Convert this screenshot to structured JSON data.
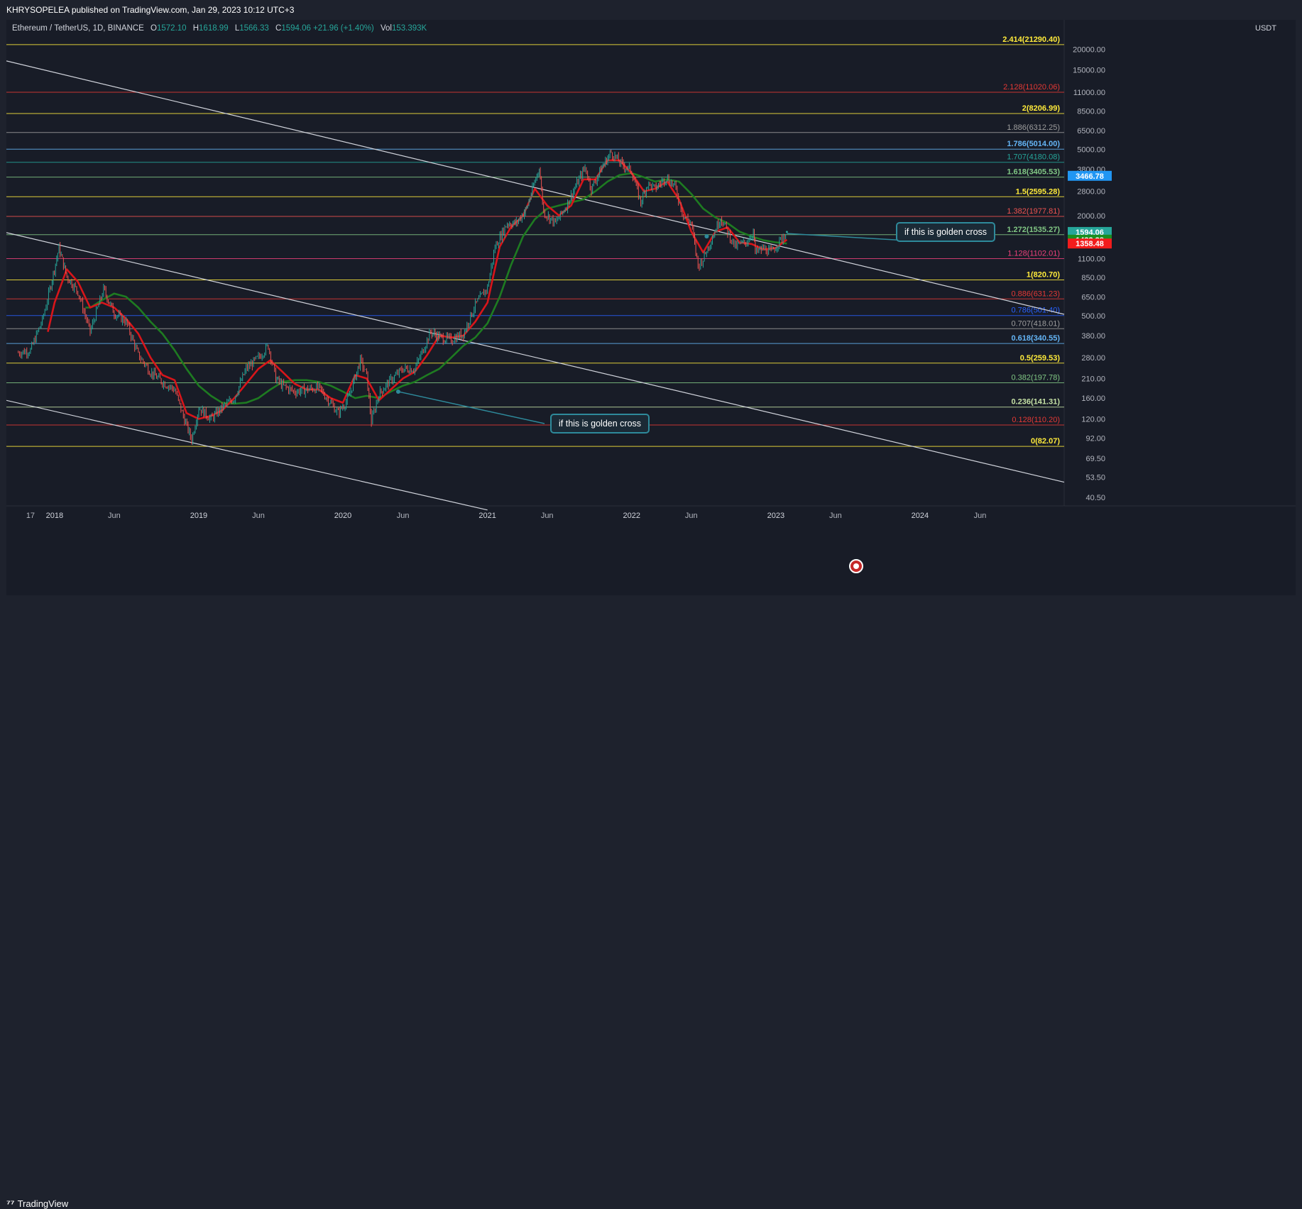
{
  "header": {
    "publisher": "KHRYSOPELEA published on TradingView.com, Jan 29, 2023 10:12 UTC+3"
  },
  "legend": {
    "symbol": "Ethereum / TetherUS, 1D, BINANCE",
    "o_label": "O",
    "o": "1572.10",
    "h_label": "H",
    "h": "1618.99",
    "l_label": "L",
    "l": "1566.33",
    "c_label": "C",
    "c": "1594.06",
    "change": "+21.96 (+1.40%)",
    "vol_label": "Vol",
    "vol": "153.393K"
  },
  "axis_unit": "USDT",
  "footer": {
    "brand": "TradingView"
  },
  "annotations": {
    "callout_1": "if this is golden cross",
    "callout_2": "if this is golden cross"
  },
  "price_tags": [
    {
      "text": "3466.78",
      "value": 3466.78,
      "color": "#2196f3",
      "fg": "#ffffff"
    },
    {
      "text": "1594.06",
      "value": 1594.06,
      "color": "#26a69a",
      "fg": "#ffffff"
    },
    {
      "text": "16:47:12",
      "value": 1594.06,
      "color": "#26a69a",
      "fg": "#ffffff",
      "offset_rows": 1
    },
    {
      "text": "1432.28",
      "value": 1432.28,
      "color": "#1b8e1f",
      "fg": "#ffffff"
    },
    {
      "text": "1358.48",
      "value": 1358.48,
      "color": "#f21c1c",
      "fg": "#ffffff"
    }
  ],
  "colors": {
    "background": "#181c27",
    "up_candle": "#26a69a",
    "down_candle": "#ef5350",
    "ma_fast": "#d8151a",
    "ma_slow": "#1e7b21",
    "trendline": "#d1d4dc"
  },
  "chart_data": {
    "type": "line",
    "title": "Ethereum / TetherUS, 1D, BINANCE",
    "yscale": "log",
    "ylim": [
      36,
      30000
    ],
    "xlim": [
      "2017-09-01",
      "2024-12-31"
    ],
    "grid": false,
    "y_ticks": [
      "20000.00",
      "15000.00",
      "11000.00",
      "8500.00",
      "6500.00",
      "5000.00",
      "3800.00",
      "2800.00",
      "2000.00",
      "1500.00",
      "1100.00",
      "850.00",
      "650.00",
      "500.00",
      "380.00",
      "280.00",
      "210.00",
      "160.00",
      "120.00",
      "92.00",
      "69.50",
      "53.50",
      "40.50"
    ],
    "x_ticks": [
      {
        "label": "17",
        "date": "2017-11-01"
      },
      {
        "label": "2018",
        "date": "2018-01-01"
      },
      {
        "label": "Jun",
        "date": "2018-06-01"
      },
      {
        "label": "2019",
        "date": "2019-01-01"
      },
      {
        "label": "Jun",
        "date": "2019-06-01"
      },
      {
        "label": "2020",
        "date": "2020-01-01"
      },
      {
        "label": "Jun",
        "date": "2020-06-01"
      },
      {
        "label": "2021",
        "date": "2021-01-01"
      },
      {
        "label": "Jun",
        "date": "2021-06-01"
      },
      {
        "label": "2022",
        "date": "2022-01-01"
      },
      {
        "label": "Jun",
        "date": "2022-06-01"
      },
      {
        "label": "2023",
        "date": "2023-01-01"
      },
      {
        "label": "Jun",
        "date": "2023-06-01"
      },
      {
        "label": "2024",
        "date": "2024-01-01"
      },
      {
        "label": "Jun",
        "date": "2024-06-01"
      }
    ],
    "fib_levels": [
      {
        "label": "2.414(21290.40)",
        "value": 21290.4,
        "color": "#ffeb3b",
        "bold": true
      },
      {
        "label": "2.128(11020.06)",
        "value": 11020.06,
        "color": "#e53935",
        "bold": false
      },
      {
        "label": "2(8206.99)",
        "value": 8206.99,
        "color": "#ffeb3b",
        "bold": true
      },
      {
        "label": "1.886(6312.25)",
        "value": 6312.25,
        "color": "#9e9e9e",
        "bold": false
      },
      {
        "label": "1.786(5014.00)",
        "value": 5014.0,
        "color": "#64b5f6",
        "bold": true
      },
      {
        "label": "1.707(4180.08)",
        "value": 4180.08,
        "color": "#26a69a",
        "bold": false
      },
      {
        "label": "1.618(3405.53)",
        "value": 3405.53,
        "color": "#81c784",
        "bold": true
      },
      {
        "label": "1.5(2595.28)",
        "value": 2595.28,
        "color": "#ffeb3b",
        "bold": true
      },
      {
        "label": "1.382(1977.81)",
        "value": 1977.81,
        "color": "#ef5350",
        "bold": false
      },
      {
        "label": "1.272(1535.27)",
        "value": 1535.27,
        "color": "#81c784",
        "bold": true
      },
      {
        "label": "1.128(1102.01)",
        "value": 1102.01,
        "color": "#ec407a",
        "bold": false
      },
      {
        "label": "1(820.70)",
        "value": 820.7,
        "color": "#ffeb3b",
        "bold": true
      },
      {
        "label": "0.886(631.23)",
        "value": 631.23,
        "color": "#e53935",
        "bold": false
      },
      {
        "label": "0.786(501.40)",
        "value": 501.4,
        "color": "#2962ff",
        "bold": false
      },
      {
        "label": "0.707(418.01)",
        "value": 418.01,
        "color": "#9e9e9e",
        "bold": false
      },
      {
        "label": "0.618(340.55)",
        "value": 340.55,
        "color": "#64b5f6",
        "bold": true
      },
      {
        "label": "0.5(259.53)",
        "value": 259.53,
        "color": "#ffeb3b",
        "bold": true
      },
      {
        "label": "0.382(197.78)",
        "value": 197.78,
        "color": "#81c784",
        "bold": false
      },
      {
        "label": "0.236(141.31)",
        "value": 141.31,
        "color": "#c5e1a5",
        "bold": true
      },
      {
        "label": "0.128(110.20)",
        "value": 110.2,
        "color": "#e53935",
        "bold": false
      },
      {
        "label": "0(82.07)",
        "value": 82.07,
        "color": "#ffeb3b",
        "bold": true
      }
    ],
    "trendlines": [
      {
        "name": "upper",
        "x1": "2017-09-01",
        "y1": 17000,
        "x2": "2024-12-31",
        "y2": 510
      },
      {
        "name": "middle",
        "x1": "2017-09-01",
        "y1": 1580,
        "x2": "2024-12-31",
        "y2": 50
      },
      {
        "name": "lower",
        "x1": "2017-09-01",
        "y1": 155,
        "x2": "2021-01-01",
        "y2": 34
      }
    ],
    "series": [
      {
        "name": "price",
        "kind": "candles",
        "x": [
          "2017-10-01",
          "2017-11-01",
          "2017-12-01",
          "2017-12-20",
          "2018-01-12",
          "2018-02-01",
          "2018-03-01",
          "2018-04-01",
          "2018-05-05",
          "2018-06-01",
          "2018-07-01",
          "2018-08-01",
          "2018-09-01",
          "2018-10-01",
          "2018-11-01",
          "2018-11-20",
          "2018-12-14",
          "2019-01-01",
          "2019-02-01",
          "2019-03-01",
          "2019-04-01",
          "2019-05-01",
          "2019-06-01",
          "2019-06-26",
          "2019-07-15",
          "2019-08-01",
          "2019-09-01",
          "2019-10-01",
          "2019-11-01",
          "2019-12-01",
          "2019-12-20",
          "2020-01-15",
          "2020-02-14",
          "2020-03-01",
          "2020-03-13",
          "2020-04-01",
          "2020-05-01",
          "2020-06-01",
          "2020-07-01",
          "2020-08-10",
          "2020-09-05",
          "2020-10-01",
          "2020-11-01",
          "2020-12-01",
          "2021-01-01",
          "2021-01-20",
          "2021-02-20",
          "2021-03-15",
          "2021-04-10",
          "2021-05-12",
          "2021-05-23",
          "2021-06-22",
          "2021-07-20",
          "2021-08-15",
          "2021-09-05",
          "2021-09-21",
          "2021-10-15",
          "2021-11-10",
          "2021-12-05",
          "2022-01-01",
          "2022-01-24",
          "2022-02-10",
          "2022-03-01",
          "2022-03-30",
          "2022-04-20",
          "2022-05-12",
          "2022-06-01",
          "2022-06-18",
          "2022-07-01",
          "2022-08-14",
          "2022-09-01",
          "2022-09-20",
          "2022-10-20",
          "2022-11-05",
          "2022-11-10",
          "2022-12-01",
          "2022-12-20",
          "2023-01-10",
          "2023-01-29"
        ],
        "values": [
          300,
          310,
          470,
          720,
          1280,
          860,
          700,
          400,
          720,
          520,
          460,
          290,
          230,
          200,
          180,
          130,
          90,
          140,
          120,
          140,
          160,
          240,
          280,
          330,
          210,
          190,
          175,
          180,
          185,
          150,
          130,
          160,
          270,
          220,
          115,
          170,
          205,
          240,
          240,
          400,
          370,
          360,
          390,
          580,
          740,
          1300,
          1800,
          1800,
          2200,
          3900,
          2100,
          1800,
          2300,
          3100,
          3900,
          2900,
          3800,
          4800,
          4100,
          3700,
          2400,
          3100,
          2900,
          3400,
          3000,
          2000,
          1800,
          1000,
          1100,
          1950,
          1600,
          1300,
          1400,
          1600,
          1200,
          1270,
          1200,
          1400,
          1594.06
        ]
      },
      {
        "name": "ma_fast",
        "x": [
          "2017-12-15",
          "2018-01-01",
          "2018-02-01",
          "2018-03-01",
          "2018-04-01",
          "2018-05-01",
          "2018-06-01",
          "2018-07-01",
          "2018-08-01",
          "2018-09-01",
          "2018-10-01",
          "2018-11-01",
          "2018-12-01",
          "2019-01-01",
          "2019-02-01",
          "2019-03-01",
          "2019-04-01",
          "2019-05-01",
          "2019-06-01",
          "2019-07-01",
          "2019-08-01",
          "2019-09-01",
          "2019-10-01",
          "2019-11-01",
          "2019-12-01",
          "2020-01-01",
          "2020-02-01",
          "2020-03-01",
          "2020-04-01",
          "2020-05-01",
          "2020-06-01",
          "2020-07-01",
          "2020-08-01",
          "2020-09-01",
          "2020-10-01",
          "2020-11-01",
          "2020-12-01",
          "2021-01-01",
          "2021-02-01",
          "2021-03-01",
          "2021-04-01",
          "2021-05-01",
          "2021-06-01",
          "2021-07-01",
          "2021-08-01",
          "2021-09-01",
          "2021-10-01",
          "2021-11-01",
          "2021-12-01",
          "2022-01-01",
          "2022-02-01",
          "2022-03-01",
          "2022-04-01",
          "2022-05-01",
          "2022-06-01",
          "2022-07-01",
          "2022-08-01",
          "2022-09-01",
          "2022-10-01",
          "2022-11-01",
          "2022-12-01",
          "2023-01-01",
          "2023-01-29"
        ],
        "values": [
          400,
          600,
          950,
          800,
          560,
          600,
          560,
          480,
          390,
          280,
          220,
          205,
          130,
          120,
          125,
          135,
          160,
          195,
          240,
          270,
          230,
          195,
          180,
          180,
          160,
          150,
          220,
          210,
          155,
          180,
          210,
          230,
          290,
          380,
          370,
          380,
          460,
          600,
          1300,
          1700,
          2000,
          2900,
          2300,
          2000,
          2300,
          3300,
          3300,
          4300,
          4300,
          3600,
          2800,
          2900,
          3200,
          2500,
          1600,
          1200,
          1600,
          1700,
          1380,
          1350,
          1250,
          1280,
          1432.28
        ]
      },
      {
        "name": "ma_slow",
        "x": [
          "2018-03-20",
          "2018-04-01",
          "2018-05-01",
          "2018-06-01",
          "2018-07-01",
          "2018-08-01",
          "2018-09-01",
          "2018-10-01",
          "2018-11-01",
          "2018-12-01",
          "2019-01-01",
          "2019-02-01",
          "2019-03-01",
          "2019-04-01",
          "2019-05-01",
          "2019-06-01",
          "2019-07-01",
          "2019-08-01",
          "2019-09-01",
          "2019-10-01",
          "2019-11-01",
          "2019-12-01",
          "2020-01-01",
          "2020-02-01",
          "2020-03-01",
          "2020-04-01",
          "2020-05-01",
          "2020-06-01",
          "2020-07-01",
          "2020-08-01",
          "2020-09-01",
          "2020-10-01",
          "2020-11-01",
          "2020-12-01",
          "2021-01-01",
          "2021-02-01",
          "2021-03-01",
          "2021-04-01",
          "2021-05-01",
          "2021-06-01",
          "2021-07-01",
          "2021-08-01",
          "2021-09-01",
          "2021-10-01",
          "2021-11-01",
          "2021-12-01",
          "2022-01-01",
          "2022-02-01",
          "2022-03-01",
          "2022-04-01",
          "2022-05-01",
          "2022-06-01",
          "2022-07-01",
          "2022-08-01",
          "2022-09-01",
          "2022-10-01",
          "2022-11-01",
          "2022-12-01",
          "2023-01-01",
          "2023-01-29"
        ],
        "values": [
          560,
          560,
          620,
          680,
          650,
          560,
          460,
          390,
          310,
          240,
          190,
          165,
          150,
          148,
          150,
          160,
          180,
          200,
          205,
          205,
          200,
          190,
          175,
          160,
          165,
          160,
          175,
          190,
          200,
          220,
          240,
          280,
          330,
          370,
          450,
          650,
          1000,
          1500,
          1900,
          2200,
          2300,
          2400,
          2500,
          2800,
          3200,
          3500,
          3600,
          3400,
          3200,
          3300,
          3200,
          2700,
          2200,
          1950,
          1800,
          1600,
          1500,
          1420,
          1380,
          1358.48
        ]
      }
    ]
  }
}
